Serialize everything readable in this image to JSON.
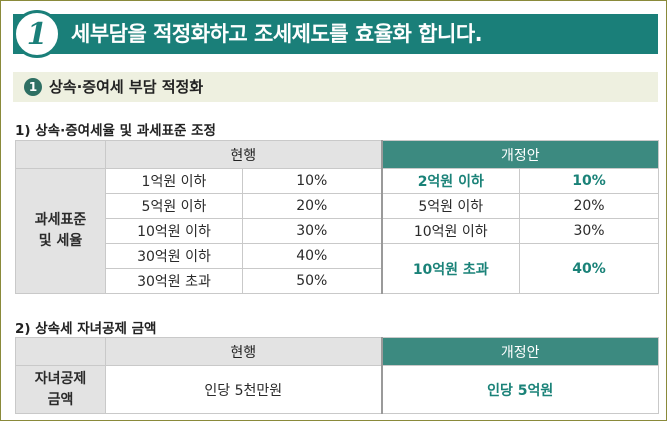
{
  "banner": {
    "number": "1",
    "title": "세부담을 적정화하고 조세제도를 효율화 합니다."
  },
  "subsection": {
    "bullet": "1",
    "title": "상속·증여세 부담 적정화"
  },
  "section1": {
    "title": "1) 상속·증여세율 및 과세표준 조정",
    "header_current": "현행",
    "header_proposed": "개정안",
    "row_label_line1": "과세표준",
    "row_label_line2": "및 세율",
    "current_rows": [
      {
        "base": "1억원 이하",
        "rate": "10%"
      },
      {
        "base": "5억원 이하",
        "rate": "20%"
      },
      {
        "base": "10억원 이하",
        "rate": "30%"
      },
      {
        "base": "30억원 이하",
        "rate": "40%"
      },
      {
        "base": "30억원 초과",
        "rate": "50%"
      }
    ],
    "proposed_rows": [
      {
        "base": "2억원 이하",
        "rate": "10%"
      },
      {
        "base": "5억원 이하",
        "rate": "20%"
      },
      {
        "base": "10억원 이하",
        "rate": "30%"
      },
      {
        "base": "10억원 초과",
        "rate": "40%"
      }
    ]
  },
  "section2": {
    "title": "2) 상속세 자녀공제 금액",
    "header_current": "현행",
    "header_proposed": "개정안",
    "row_label_line1": "자녀공제",
    "row_label_line2": "금액",
    "current_value": "인당 5천만원",
    "proposed_value": "인당 5억원"
  },
  "colors": {
    "accent": "#1a7f79",
    "header_proposed": "#3c8a80",
    "label_bg": "#e3e3e3"
  }
}
